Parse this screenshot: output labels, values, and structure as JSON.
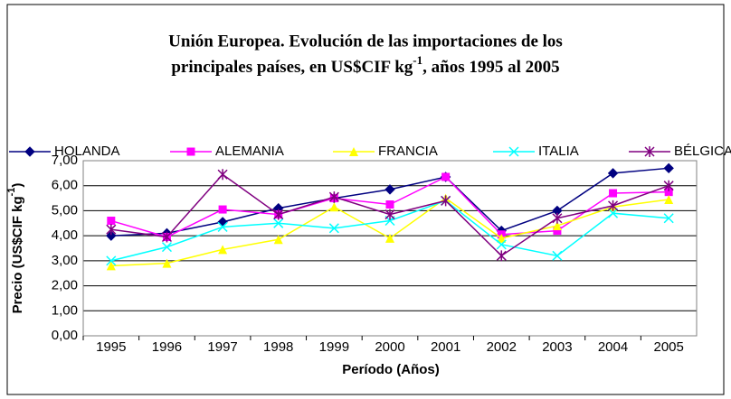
{
  "chart_data": {
    "type": "line",
    "title": [
      "Unión Europea. Evolución de las importaciones de los",
      "principales países, en US$CIF kg",
      "-1",
      ", años 1995 al 2005"
    ],
    "ylabel": [
      "Precio (US$CIF kg",
      "-1",
      ")"
    ],
    "xlabel": "Período (Años)",
    "categories": [
      "1995",
      "1996",
      "1997",
      "1998",
      "1999",
      "2000",
      "2001",
      "2002",
      "2003",
      "2004",
      "2005"
    ],
    "series": [
      {
        "name": "HOLANDA",
        "color": "#000080",
        "marker": "diamond",
        "values": [
          4.0,
          4.1,
          4.55,
          5.1,
          5.5,
          5.85,
          6.35,
          4.2,
          5.0,
          6.5,
          6.7
        ]
      },
      {
        "name": "ALEMANIA",
        "color": "#ff00ff",
        "marker": "square",
        "values": [
          4.6,
          3.95,
          5.05,
          4.85,
          5.5,
          5.25,
          6.35,
          4.05,
          4.2,
          5.7,
          5.75
        ]
      },
      {
        "name": "FRANCIA",
        "color": "#ffff00",
        "marker": "triangle",
        "values": [
          2.8,
          2.9,
          3.45,
          3.85,
          5.15,
          3.9,
          5.5,
          3.9,
          4.4,
          5.15,
          5.45
        ]
      },
      {
        "name": "ITALIA",
        "color": "#00ffff",
        "marker": "x",
        "values": [
          3.0,
          3.55,
          4.35,
          4.5,
          4.3,
          4.6,
          5.4,
          3.65,
          3.2,
          4.9,
          4.7
        ]
      },
      {
        "name": "BÉLGICA",
        "color": "#800080",
        "marker": "star",
        "values": [
          4.25,
          3.95,
          6.45,
          4.85,
          5.55,
          4.85,
          5.4,
          3.2,
          4.7,
          5.2,
          6.0
        ]
      }
    ],
    "ylim": [
      0,
      7
    ],
    "yticks": [
      {
        "value": 0,
        "label": "0,00"
      },
      {
        "value": 1,
        "label": "1,00"
      },
      {
        "value": 2,
        "label": "2,00"
      },
      {
        "value": 3,
        "label": "3,00"
      },
      {
        "value": 4,
        "label": "4,00"
      },
      {
        "value": 5,
        "label": "5,00"
      },
      {
        "value": 6,
        "label": "6,00"
      },
      {
        "value": 7,
        "label": "7,00"
      }
    ],
    "grid": true
  }
}
